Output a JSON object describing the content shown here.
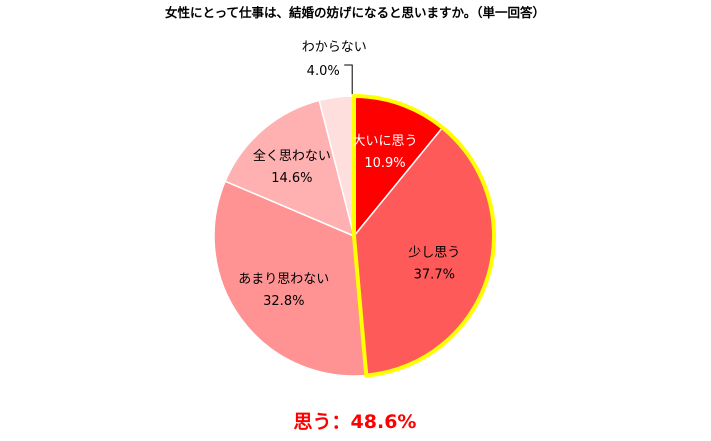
{
  "chart_data": {
    "type": "pie",
    "title": "女性にとって仕事は、結婚の妨げになると思いますか。（単一回答）",
    "slices": [
      {
        "label": "大いに思う",
        "value": 10.9,
        "value_text": "10.9%",
        "color": "#ff0000"
      },
      {
        "label": "少し思う",
        "value": 37.7,
        "value_text": "37.7%",
        "color": "#ff5a5a"
      },
      {
        "label": "あまり思わない",
        "value": 32.8,
        "value_text": "32.8%",
        "color": "#ff9393"
      },
      {
        "label": "全く思わない",
        "value": 14.6,
        "value_text": "14.6%",
        "color": "#ffb0b0"
      },
      {
        "label": "わからない",
        "value": 4.0,
        "value_text": "4.0%",
        "color": "#ffdede"
      }
    ],
    "highlight": {
      "slices": [
        "大いに思う",
        "少し思う"
      ],
      "outline_color": "#ffff00"
    },
    "summary_text": "思う：48.6%"
  }
}
